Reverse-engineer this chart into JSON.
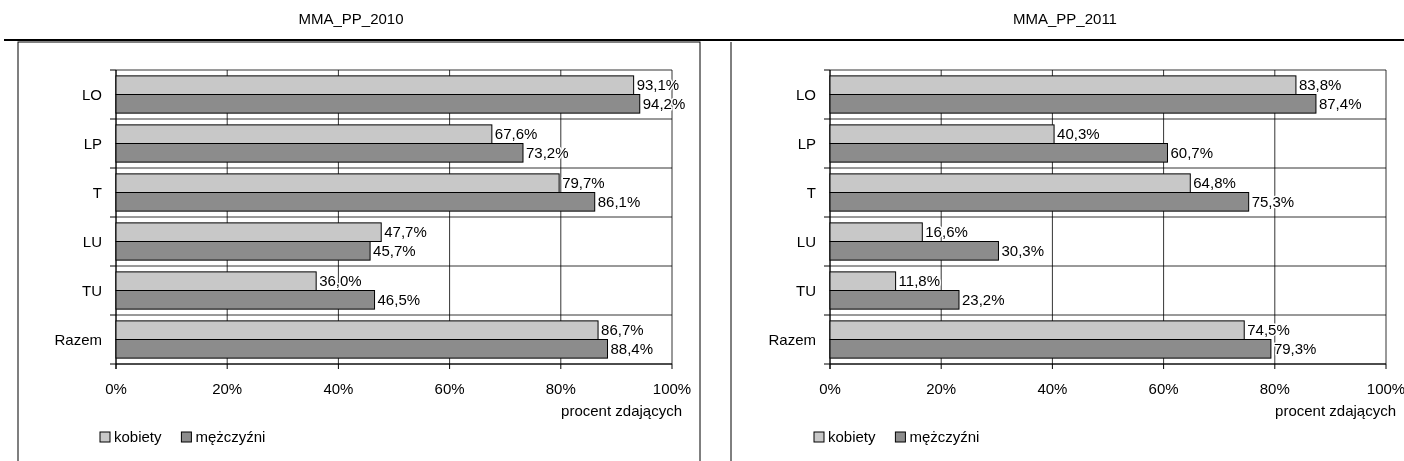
{
  "chart_data": [
    {
      "type": "bar",
      "orientation": "horizontal",
      "title": "MMA_PP_2010",
      "xlabel": "procent zdających",
      "categories": [
        "LO",
        "LP",
        "T",
        "LU",
        "TU",
        "Razem"
      ],
      "series": [
        {
          "name": "kobiety",
          "color": "#c8c8c8",
          "values": [
            93.1,
            67.6,
            79.7,
            47.7,
            36.0,
            86.7
          ],
          "value_labels": [
            "93,1%",
            "67,6%",
            "79,7%",
            "47,7%",
            "36,0%",
            "86,7%"
          ]
        },
        {
          "name": "mężczyźni",
          "color": "#8c8c8c",
          "values": [
            94.2,
            73.2,
            86.1,
            45.7,
            46.5,
            88.4
          ],
          "value_labels": [
            "94,2%",
            "73,2%",
            "86,1%",
            "45,7%",
            "46,5%",
            "88,4%"
          ]
        }
      ],
      "xlim": [
        0,
        100
      ],
      "xticks": [
        {
          "value": 0,
          "label": "0%"
        },
        {
          "value": 20,
          "label": "20%"
        },
        {
          "value": 40,
          "label": "40%"
        },
        {
          "value": 60,
          "label": "60%"
        },
        {
          "value": 80,
          "label": "80%"
        },
        {
          "value": 100,
          "label": "100%"
        }
      ],
      "grid": true,
      "legend": "bottom left"
    },
    {
      "type": "bar",
      "orientation": "horizontal",
      "title": "MMA_PP_2011",
      "xlabel": "procent zdających",
      "categories": [
        "LO",
        "LP",
        "T",
        "LU",
        "TU",
        "Razem"
      ],
      "series": [
        {
          "name": "kobiety",
          "color": "#c8c8c8",
          "values": [
            83.8,
            40.3,
            64.8,
            16.6,
            11.8,
            74.5
          ],
          "value_labels": [
            "83,8%",
            "40,3%",
            "64,8%",
            "16,6%",
            "11,8%",
            "74,5%"
          ]
        },
        {
          "name": "mężczyźni",
          "color": "#8c8c8c",
          "values": [
            87.4,
            60.7,
            75.3,
            30.3,
            23.2,
            79.3
          ],
          "value_labels": [
            "87,4%",
            "60,7%",
            "75,3%",
            "30,3%",
            "23,2%",
            "79,3%"
          ]
        }
      ],
      "xlim": [
        0,
        100
      ],
      "xticks": [
        {
          "value": 0,
          "label": "0%"
        },
        {
          "value": 20,
          "label": "20%"
        },
        {
          "value": 40,
          "label": "40%"
        },
        {
          "value": 60,
          "label": "60%"
        },
        {
          "value": 80,
          "label": "80%"
        },
        {
          "value": 100,
          "label": "100%"
        }
      ],
      "grid": true,
      "legend": "bottom left"
    }
  ]
}
